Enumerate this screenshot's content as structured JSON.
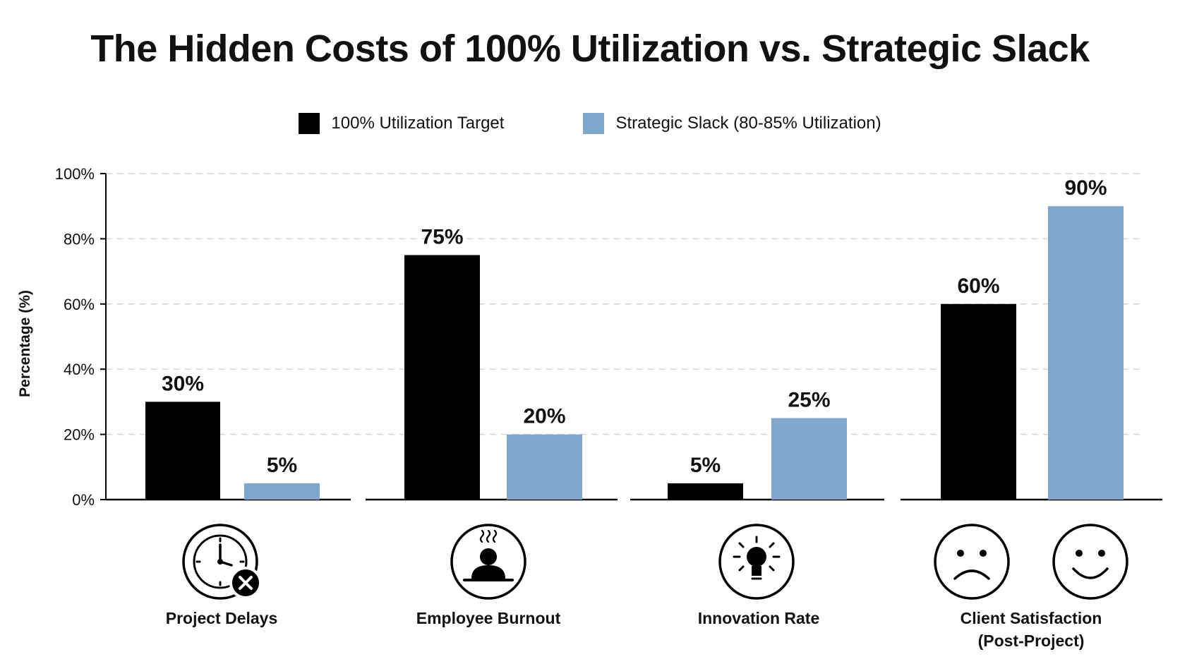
{
  "chart_data": {
    "type": "bar",
    "title": "The Hidden Costs of 100% Utilization vs. Strategic Slack",
    "ylabel": "Percentage (%)",
    "xlabel": "",
    "ylim": [
      0,
      100
    ],
    "yticks": [
      "0%",
      "20%",
      "40%",
      "60%",
      "80%",
      "100%"
    ],
    "ytick_values": [
      0,
      20,
      40,
      60,
      80,
      100
    ],
    "grid": true,
    "legend_position": "top-center",
    "categories": [
      "Project Delays",
      "Employee Burnout",
      "Innovation Rate",
      "Client Satisfaction (Post-Project)"
    ],
    "category_lines": [
      [
        "Project Delays"
      ],
      [
        "Employee Burnout"
      ],
      [
        "Innovation Rate"
      ],
      [
        "Client Satisfaction",
        "(Post-Project)"
      ]
    ],
    "series": [
      {
        "name": "100% Utilization Target",
        "color": "#000000",
        "values": [
          30,
          75,
          5,
          60
        ],
        "labels": [
          "30%",
          "75%",
          "5%",
          "60%"
        ]
      },
      {
        "name": "Strategic Slack (80-85% Utilization)",
        "color": "#7ea7cb",
        "values": [
          5,
          20,
          25,
          90
        ],
        "labels": [
          "5%",
          "20%",
          "25%",
          "90%"
        ]
      }
    ],
    "icons": [
      "clock-delay-icon",
      "burnout-person-icon",
      "lightbulb-icon",
      [
        "sad-face-icon",
        "smiley-face-icon"
      ]
    ]
  }
}
